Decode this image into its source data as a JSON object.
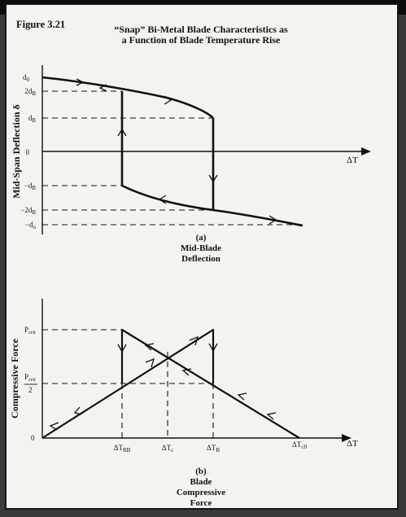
{
  "figure_label": "Figure 3.21",
  "title": {
    "line1": "“Snap” Bi-Metal Blade Characteristics as",
    "line2": "a Function of Blade Temperature Rise"
  },
  "top_plot": {
    "y_axis_label": "Mid-Span Deflection δ",
    "x_axis_label": "ΔT",
    "tick_labels": [
      "d0",
      "2dB",
      "dB",
      "0",
      "−dB",
      "−2dB",
      "−do"
    ],
    "caption": {
      "line1": "(a)",
      "line2": "Mid-Blade",
      "line3": "Deflection"
    }
  },
  "bottom_plot": {
    "y_axis_label": "Compressive Force",
    "x_axis_label": "ΔT",
    "y_tick_labels": [
      "Pcrit",
      "Pcrit / 2",
      "0"
    ],
    "x_tick_labels": [
      "ΔTRB",
      "ΔTc",
      "ΔTB",
      "ΔTc0"
    ],
    "caption": {
      "line1": "(b)",
      "line2": "Blade",
      "line3": "Compressive",
      "line4": "Force"
    }
  },
  "colors": {
    "ink": "#111111",
    "paper": "#f4f3ef",
    "frame": "#161616"
  }
}
